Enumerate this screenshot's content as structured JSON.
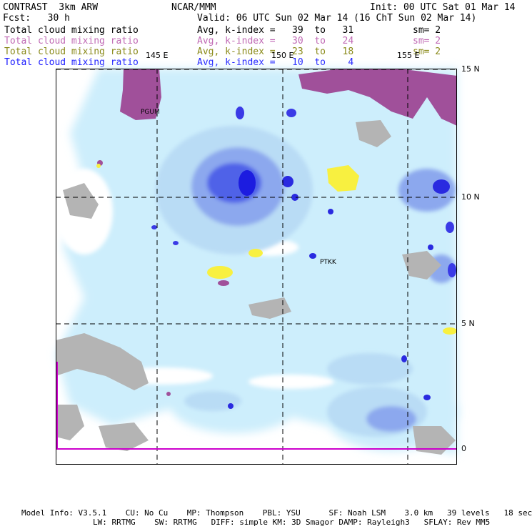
{
  "header": {
    "model_name": "CONTRAST  3km ARW",
    "org": "NCAR/MMM",
    "init": "Init: 00 UTC Sat 01 Mar 14",
    "fcst": "Fcst:   30 h",
    "valid": "Valid: 06 UTC Sun 02 Mar 14 (16 ChT Sun 02 Mar 14)"
  },
  "fields": [
    {
      "name": "Total cloud mixing ratio",
      "stat": "Avg, k-index =   39  to   31",
      "sm": "sm= 2",
      "color": "#000000"
    },
    {
      "name": "Total cloud mixing ratio",
      "stat": "Avg, k-index =   30  to   24",
      "sm": "sm= 2",
      "color": "#c06ab4"
    },
    {
      "name": "Total cloud mixing ratio",
      "stat": "Avg, k-index =   23  to   18",
      "sm": "sm= 2",
      "color": "#8a8a1a"
    },
    {
      "name": "Total cloud mixing ratio",
      "stat": "Avg, k-index =   10  to    4",
      "sm": "",
      "color": "#1a1aff"
    }
  ],
  "axes": {
    "lon_labels": [
      "145 E",
      "150 E",
      "155 E"
    ],
    "lat_labels": [
      "15 N",
      "10 N",
      "5 N",
      "0"
    ]
  },
  "stations": [
    "PGUM",
    "PTKK"
  ],
  "footer": {
    "line1": "Model Info: V3.5.1    CU: No Cu    MP: Thompson    PBL: YSU      SF: Noah LSM    3.0 km   39 levels   18 sec",
    "line2": "LW: RRTMG    SW: RRTMG   DIFF: simple KM: 3D Smagor DAMP: Rayleigh3   SFLAY: Rev MM5"
  },
  "colors": {
    "light_cyan": "#cdeefc",
    "pale_blue": "#b9dcf5",
    "mid_blue": "#8ca8ee",
    "deep_blue": "#4f62e8",
    "core_blue": "#1c1ce0",
    "gray": "#b4b4b4",
    "purple": "#a0509a",
    "yellow": "#f8f040",
    "equator_line": "#cc00cc"
  }
}
